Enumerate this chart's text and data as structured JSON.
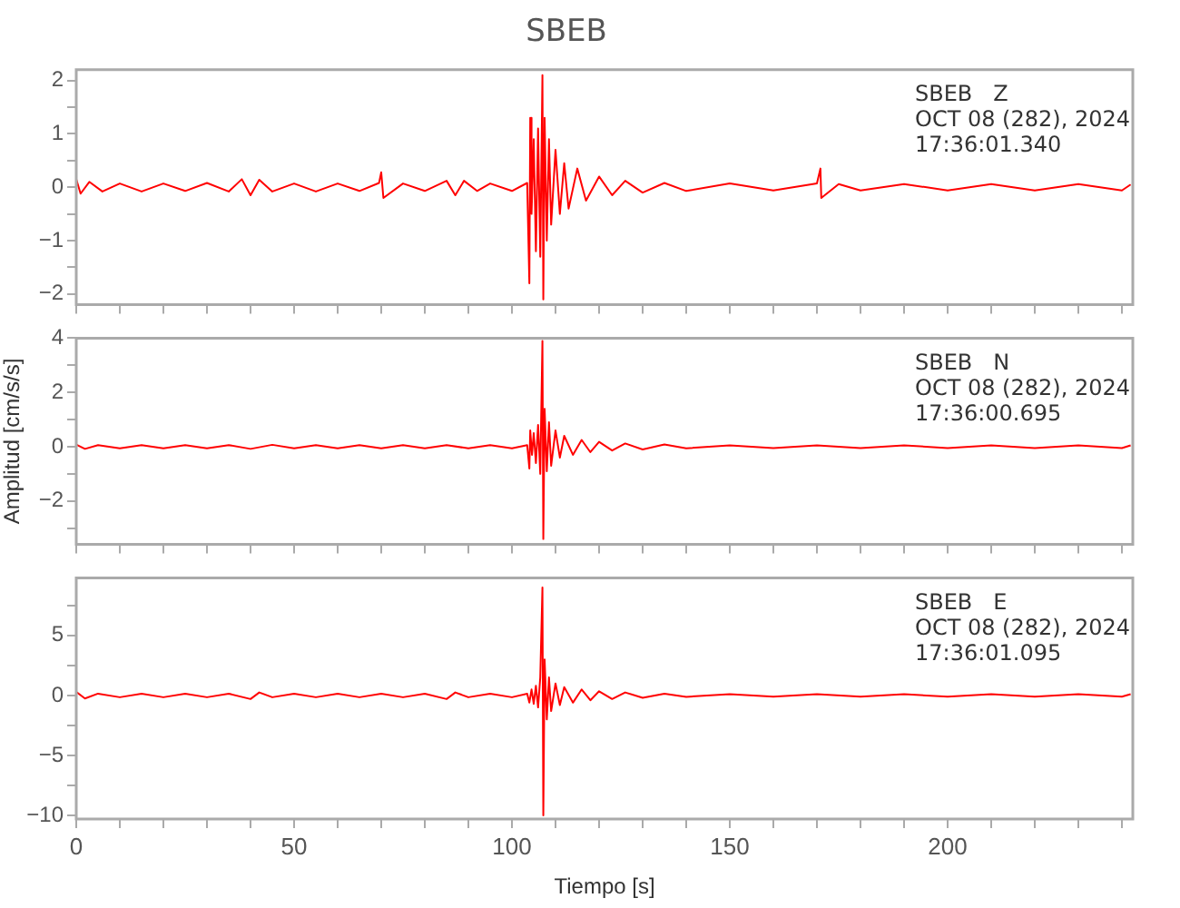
{
  "chart_data": [
    {
      "type": "line",
      "title": "SBEB",
      "annotations": [
        "SBEB   Z",
        "OCT 08 (282), 2024",
        "17:36:01.340"
      ],
      "xlim": [
        0,
        242.5
      ],
      "xticks": [
        0,
        {
          "value": 10,
          "label": null
        },
        {
          "value": 20,
          "label": null
        },
        {
          "value": 30,
          "label": null
        },
        {
          "value": 40,
          "label": null
        },
        50,
        {
          "value": 60,
          "label": null
        },
        {
          "value": 70,
          "label": null
        },
        {
          "value": 80,
          "label": null
        },
        {
          "value": 90,
          "label": null
        },
        100,
        {
          "value": 110,
          "label": null
        },
        {
          "value": 120,
          "label": null
        },
        {
          "value": 130,
          "label": null
        },
        {
          "value": 140,
          "label": null
        },
        150,
        {
          "value": 160,
          "label": null
        },
        {
          "value": 170,
          "label": null
        },
        {
          "value": 180,
          "label": null
        },
        {
          "value": 190,
          "label": null
        },
        200,
        {
          "value": 210,
          "label": null
        },
        {
          "value": 220,
          "label": null
        },
        {
          "value": 230,
          "label": null
        },
        {
          "value": 240,
          "label": null
        }
      ],
      "ylim": [
        -2.2,
        2.2
      ],
      "yticks": [
        -2,
        {
          "value": -1.5,
          "label": null
        },
        -1,
        {
          "value": -0.5,
          "label": null
        },
        0,
        {
          "value": 0.5,
          "label": null
        },
        1,
        {
          "value": 1.5,
          "label": null
        },
        2
      ],
      "tick_labels": "y",
      "grid": false,
      "legend": false,
      "x": [
        0,
        1,
        3,
        6,
        10,
        15,
        20,
        25,
        30,
        35,
        38,
        40,
        42,
        45,
        50,
        55,
        60,
        65,
        69.5,
        70,
        70.5,
        75,
        80,
        85,
        87,
        89,
        92,
        95,
        100,
        103.5,
        104,
        104.2,
        104.5,
        105,
        105.5,
        106,
        106.5,
        107,
        107.2,
        107.5,
        108,
        108.5,
        109,
        110,
        111,
        112,
        113,
        115,
        117,
        120,
        123,
        126,
        130,
        135,
        140,
        150,
        160,
        170,
        170.8,
        171,
        175,
        180,
        190,
        200,
        210,
        220,
        230,
        240,
        242
      ],
      "series": [
        {
          "color": "#ff0000",
          "values": [
            0.15,
            -0.12,
            0.1,
            -0.08,
            0.07,
            -0.08,
            0.07,
            -0.07,
            0.08,
            -0.08,
            0.15,
            -0.15,
            0.14,
            -0.08,
            0.07,
            -0.08,
            0.07,
            -0.07,
            0.08,
            0.28,
            -0.2,
            0.07,
            -0.07,
            0.12,
            -0.15,
            0.12,
            -0.07,
            0.07,
            -0.07,
            0.08,
            -1.8,
            1.3,
            -0.5,
            0.9,
            -1.2,
            1.1,
            -1.3,
            2.1,
            -2.1,
            1.3,
            -1.0,
            0.9,
            -0.7,
            0.7,
            -0.5,
            0.45,
            -0.4,
            0.35,
            -0.25,
            0.2,
            -0.15,
            0.12,
            -0.1,
            0.08,
            -0.07,
            0.07,
            -0.06,
            0.07,
            0.35,
            -0.2,
            0.06,
            -0.06,
            0.06,
            -0.06,
            0.06,
            -0.06,
            0.06,
            -0.06,
            0.05
          ]
        }
      ]
    },
    {
      "type": "line",
      "ylabel": "Amplitud [cm/s/s]",
      "annotations": [
        "SBEB   N",
        "OCT 08 (282), 2024",
        "17:36:00.695"
      ],
      "xlim": [
        0,
        242.5
      ],
      "xticks": [
        0,
        {
          "value": 10,
          "label": null
        },
        {
          "value": 20,
          "label": null
        },
        {
          "value": 30,
          "label": null
        },
        {
          "value": 40,
          "label": null
        },
        50,
        {
          "value": 60,
          "label": null
        },
        {
          "value": 70,
          "label": null
        },
        {
          "value": 80,
          "label": null
        },
        {
          "value": 90,
          "label": null
        },
        100,
        {
          "value": 110,
          "label": null
        },
        {
          "value": 120,
          "label": null
        },
        {
          "value": 130,
          "label": null
        },
        {
          "value": 140,
          "label": null
        },
        150,
        {
          "value": 160,
          "label": null
        },
        {
          "value": 170,
          "label": null
        },
        {
          "value": 180,
          "label": null
        },
        {
          "value": 190,
          "label": null
        },
        200,
        {
          "value": 210,
          "label": null
        },
        {
          "value": 220,
          "label": null
        },
        {
          "value": 230,
          "label": null
        },
        {
          "value": 240,
          "label": null
        }
      ],
      "ylim": [
        -3.6,
        4
      ],
      "yticks": [
        {
          "value": -3,
          "label": null
        },
        -2,
        {
          "value": -1,
          "label": null
        },
        0,
        {
          "value": 1,
          "label": null
        },
        2,
        {
          "value": 3,
          "label": null
        },
        4
      ],
      "tick_labels": "y",
      "grid": false,
      "legend": false,
      "x": [
        0,
        2,
        5,
        10,
        15,
        20,
        25,
        30,
        35,
        40,
        45,
        50,
        55,
        60,
        65,
        70,
        75,
        80,
        85,
        90,
        95,
        100,
        103.5,
        104,
        104.2,
        104.6,
        105,
        105.5,
        106,
        106.5,
        107,
        107.2,
        107.5,
        108,
        108.5,
        109,
        110,
        111,
        112,
        114,
        116,
        118,
        120,
        123,
        126,
        130,
        135,
        140,
        150,
        160,
        170,
        180,
        190,
        200,
        210,
        220,
        230,
        240,
        242
      ],
      "series": [
        {
          "color": "#ff0000",
          "values": [
            0.08,
            -0.08,
            0.06,
            -0.06,
            0.06,
            -0.06,
            0.06,
            -0.06,
            0.06,
            -0.08,
            0.07,
            -0.06,
            0.06,
            -0.06,
            0.06,
            -0.06,
            0.06,
            -0.06,
            0.06,
            -0.06,
            0.06,
            -0.06,
            0.06,
            -0.8,
            0.6,
            -0.3,
            0.5,
            -0.6,
            0.8,
            -1.0,
            3.9,
            -3.4,
            1.4,
            -0.9,
            0.9,
            -0.7,
            0.6,
            -0.4,
            0.4,
            -0.3,
            0.25,
            -0.2,
            0.18,
            -0.14,
            0.12,
            -0.1,
            0.08,
            -0.06,
            0.05,
            -0.05,
            0.05,
            -0.05,
            0.05,
            -0.05,
            0.05,
            -0.05,
            0.05,
            -0.05,
            0.05
          ]
        }
      ]
    },
    {
      "type": "line",
      "xlabel": "Tiempo [s]",
      "annotations": [
        "SBEB   E",
        "OCT 08 (282), 2024",
        "17:36:01.095"
      ],
      "xlim": [
        0,
        242.5
      ],
      "xticks": [
        0,
        {
          "value": 10,
          "label": null
        },
        {
          "value": 20,
          "label": null
        },
        {
          "value": 30,
          "label": null
        },
        {
          "value": 40,
          "label": null
        },
        50,
        {
          "value": 60,
          "label": null
        },
        {
          "value": 70,
          "label": null
        },
        {
          "value": 80,
          "label": null
        },
        {
          "value": 90,
          "label": null
        },
        100,
        {
          "value": 110,
          "label": null
        },
        {
          "value": 120,
          "label": null
        },
        {
          "value": 130,
          "label": null
        },
        {
          "value": 140,
          "label": null
        },
        150,
        {
          "value": 160,
          "label": null
        },
        {
          "value": 170,
          "label": null
        },
        {
          "value": 180,
          "label": null
        },
        {
          "value": 190,
          "label": null
        },
        200,
        {
          "value": 210,
          "label": null
        },
        {
          "value": 220,
          "label": null
        },
        {
          "value": 230,
          "label": null
        },
        {
          "value": 240,
          "label": null
        }
      ],
      "ylim": [
        -10.3,
        9.8
      ],
      "yticks": [
        -10,
        {
          "value": -7.5,
          "label": null
        },
        -5,
        {
          "value": -2.5,
          "label": null
        },
        0,
        {
          "value": 2.5,
          "label": null
        },
        5,
        {
          "value": 7.5,
          "label": null
        }
      ],
      "grid": false,
      "legend": false,
      "x": [
        0,
        2,
        5,
        10,
        15,
        20,
        25,
        30,
        35,
        40,
        42,
        45,
        50,
        55,
        60,
        65,
        70,
        75,
        80,
        85,
        87,
        90,
        95,
        100,
        103.5,
        104,
        104.5,
        105,
        105.5,
        106,
        106.5,
        107,
        107.2,
        107.5,
        108,
        108.5,
        109,
        110,
        111,
        112,
        114,
        116,
        118,
        120,
        123,
        126,
        130,
        135,
        140,
        150,
        160,
        170,
        180,
        190,
        200,
        210,
        220,
        230,
        240,
        242
      ],
      "series": [
        {
          "color": "#ff0000",
          "values": [
            0.3,
            -0.25,
            0.15,
            -0.15,
            0.15,
            -0.15,
            0.15,
            -0.15,
            0.15,
            -0.3,
            0.25,
            -0.15,
            0.15,
            -0.15,
            0.15,
            -0.15,
            0.15,
            -0.15,
            0.15,
            -0.3,
            0.25,
            -0.15,
            0.15,
            -0.15,
            0.15,
            -0.6,
            0.5,
            -0.7,
            0.8,
            -1.0,
            1.5,
            9.0,
            -10.0,
            3.0,
            -2.0,
            1.5,
            -1.3,
            1.0,
            -0.8,
            0.7,
            -0.6,
            0.5,
            -0.4,
            0.35,
            -0.3,
            0.25,
            -0.2,
            0.15,
            -0.12,
            0.1,
            -0.1,
            0.1,
            -0.1,
            0.1,
            -0.1,
            0.1,
            -0.1,
            0.1,
            -0.1,
            0.1
          ]
        }
      ]
    }
  ]
}
